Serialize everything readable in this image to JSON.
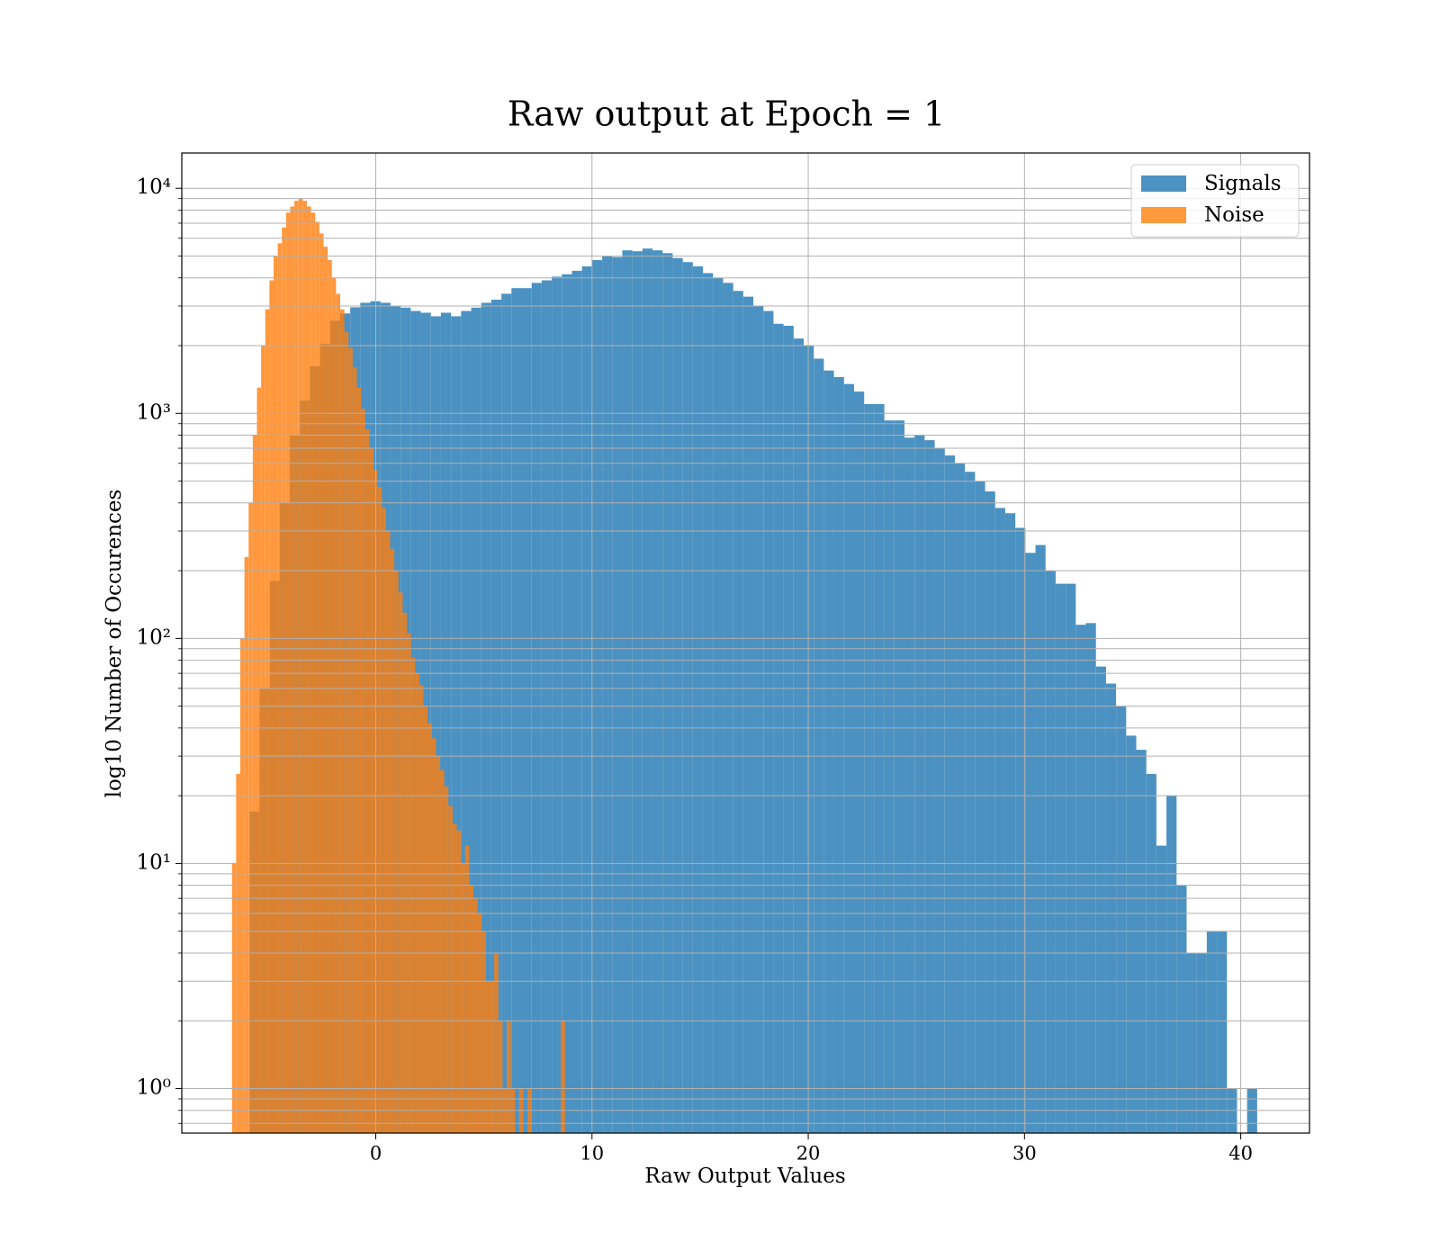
{
  "chart_data": {
    "type": "histogram",
    "title": "Raw output at Epoch = 1",
    "xlabel": "Raw Output Values",
    "ylabel": "log10 Number of Occurences",
    "xlim": [
      -8.97,
      43.18
    ],
    "ylim": [
      0.634,
      14350
    ],
    "ylog": true,
    "grid": true,
    "legend": "upper right",
    "opacity": 0.8,
    "xticks": [
      0,
      10,
      20,
      30,
      40
    ],
    "yticks": [
      {
        "value": 1,
        "label": "10⁰"
      },
      {
        "value": 10,
        "label": "10¹"
      },
      {
        "value": 100,
        "label": "10²"
      },
      {
        "value": 1000,
        "label": "10³"
      },
      {
        "value": 10000,
        "label": "10⁴"
      }
    ],
    "yminorticks": [
      0.7,
      0.8,
      0.9,
      2,
      3,
      4,
      5,
      6,
      7,
      8,
      9,
      20,
      30,
      40,
      50,
      60,
      70,
      80,
      90,
      200,
      300,
      400,
      500,
      600,
      700,
      800,
      900,
      2000,
      3000,
      4000,
      5000,
      6000,
      7000,
      8000,
      9000
    ],
    "series": [
      {
        "name": "Signals",
        "color": "#1f77b4",
        "bins": [
          -5.84,
          -5.374,
          -4.908,
          -4.442,
          -3.976,
          -3.51,
          -3.044,
          -2.578,
          -2.112,
          -1.646,
          -1.18,
          -0.714,
          -0.248,
          0.218,
          0.684,
          1.15,
          1.616,
          2.082,
          2.548,
          3.014,
          3.48,
          3.946,
          4.412,
          4.878,
          5.344,
          5.81,
          6.276,
          6.742,
          7.208,
          7.674,
          8.14,
          8.606,
          9.072,
          9.538,
          10.004,
          10.47,
          10.936,
          11.402,
          11.868,
          12.334,
          12.8,
          13.266,
          13.732,
          14.198,
          14.664,
          15.13,
          15.596,
          16.062,
          16.528,
          16.994,
          17.46,
          17.926,
          18.392,
          18.858,
          19.324,
          19.79,
          20.256,
          20.722,
          21.188,
          21.654,
          22.12,
          22.586,
          23.052,
          23.518,
          23.984,
          24.45,
          24.916,
          25.382,
          25.848,
          26.314,
          26.78,
          27.246,
          27.712,
          28.178,
          28.644,
          29.11,
          29.576,
          30.042,
          30.508,
          30.974,
          31.44,
          31.906,
          32.372,
          32.838,
          33.304,
          33.77,
          34.236,
          34.702,
          35.168,
          35.634,
          36.1,
          36.566,
          37.032,
          37.498,
          37.964,
          38.43,
          38.896,
          39.362,
          39.828,
          40.294,
          40.76
        ],
        "values": [
          17,
          60,
          180,
          400,
          800,
          1140,
          1620,
          2040,
          2580,
          2780,
          2960,
          3100,
          3150,
          3100,
          3000,
          2950,
          2850,
          2800,
          2700,
          2800,
          2700,
          2850,
          2950,
          3100,
          3200,
          3400,
          3600,
          3600,
          3800,
          3900,
          4050,
          4150,
          4300,
          4500,
          4800,
          5000,
          4950,
          5300,
          5250,
          5400,
          5300,
          5150,
          4900,
          4700,
          4500,
          4200,
          4000,
          3800,
          3500,
          3300,
          3000,
          2850,
          2500,
          2450,
          2150,
          2000,
          1750,
          1550,
          1450,
          1350,
          1250,
          1100,
          1100,
          930,
          930,
          780,
          800,
          760,
          700,
          650,
          600,
          550,
          500,
          450,
          380,
          360,
          310,
          240,
          260,
          200,
          175,
          175,
          115,
          117,
          75,
          63,
          50,
          37,
          32,
          25,
          12,
          20,
          8,
          4,
          4,
          5,
          5,
          1,
          0,
          1
        ]
      },
      {
        "name": "Noise",
        "color": "#ff7f0e",
        "bins": [
          -6.65,
          -6.4575,
          -6.265,
          -6.0725,
          -5.88,
          -5.6875,
          -5.495,
          -5.3025,
          -5.11,
          -4.9175,
          -4.725,
          -4.5325,
          -4.34,
          -4.1475,
          -3.955,
          -3.7625,
          -3.57,
          -3.3775,
          -3.185,
          -2.9925,
          -2.8,
          -2.6075,
          -2.415,
          -2.2225,
          -2.03,
          -1.8375,
          -1.645,
          -1.4525,
          -1.26,
          -1.0675,
          -0.875,
          -0.6825,
          -0.49,
          -0.2975,
          -0.105,
          0.0875,
          0.28,
          0.4725,
          0.665,
          0.8575,
          1.05,
          1.2425,
          1.435,
          1.6275,
          1.82,
          2.0125,
          2.205,
          2.3975,
          2.59,
          2.7825,
          2.975,
          3.1675,
          3.36,
          3.5525,
          3.745,
          3.9375,
          4.13,
          4.3225,
          4.515,
          4.7075,
          4.9,
          5.0925,
          5.285,
          5.4775,
          5.67,
          5.8625,
          6.055,
          6.2475,
          6.44,
          6.6325,
          6.825,
          7.0175,
          7.21,
          7.4025,
          7.595,
          7.7875,
          7.98,
          8.1725,
          8.365,
          8.5575,
          8.75
        ],
        "values": [
          10,
          25,
          100,
          230,
          400,
          800,
          1300,
          2000,
          2900,
          3900,
          5000,
          5700,
          6700,
          7800,
          8300,
          8800,
          9000,
          8800,
          8300,
          7800,
          7100,
          6300,
          5500,
          4800,
          4000,
          3400,
          2900,
          2300,
          1950,
          1600,
          1300,
          1050,
          850,
          700,
          560,
          470,
          380,
          300,
          250,
          200,
          160,
          130,
          105,
          82,
          70,
          62,
          50,
          42,
          36,
          30,
          26,
          22,
          18,
          15,
          14,
          10,
          12,
          8,
          7,
          6,
          5,
          3,
          3,
          4,
          2,
          1,
          2,
          1,
          0,
          1,
          0,
          1,
          0,
          0,
          0,
          0,
          0,
          0,
          0,
          2
        ]
      }
    ]
  }
}
